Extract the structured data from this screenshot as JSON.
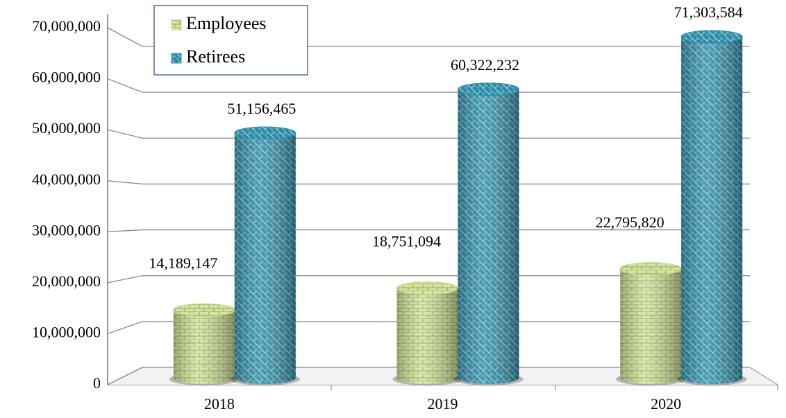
{
  "chart_data": {
    "type": "bar",
    "categories": [
      "2018",
      "2019",
      "2020"
    ],
    "series": [
      {
        "name": "Employees",
        "color": "#c6da8c",
        "values": [
          14189147,
          18751094,
          22795820
        ],
        "value_labels": [
          "14,189,147",
          "18,751,094",
          "22,795,820"
        ]
      },
      {
        "name": "Retirees",
        "color": "#2e8ba6",
        "values": [
          51156465,
          60322232,
          71303584
        ],
        "value_labels": [
          "51,156,465",
          "60,322,232",
          "71,303,584"
        ]
      }
    ],
    "ylim": [
      0,
      70000000
    ],
    "yticks": [
      0,
      {
        "value": 10000000,
        "label": "10,000,000"
      },
      {
        "value": 20000000,
        "label": "20,000,000"
      },
      {
        "value": 30000000,
        "label": "30,000,000"
      },
      {
        "value": 40000000,
        "label": "40,000,000"
      },
      {
        "value": 50000000,
        "label": "50,000,000"
      },
      {
        "value": 60000000,
        "label": "60,000,000"
      },
      {
        "value": 70000000,
        "label": "70,000,000"
      }
    ],
    "grid": true
  }
}
